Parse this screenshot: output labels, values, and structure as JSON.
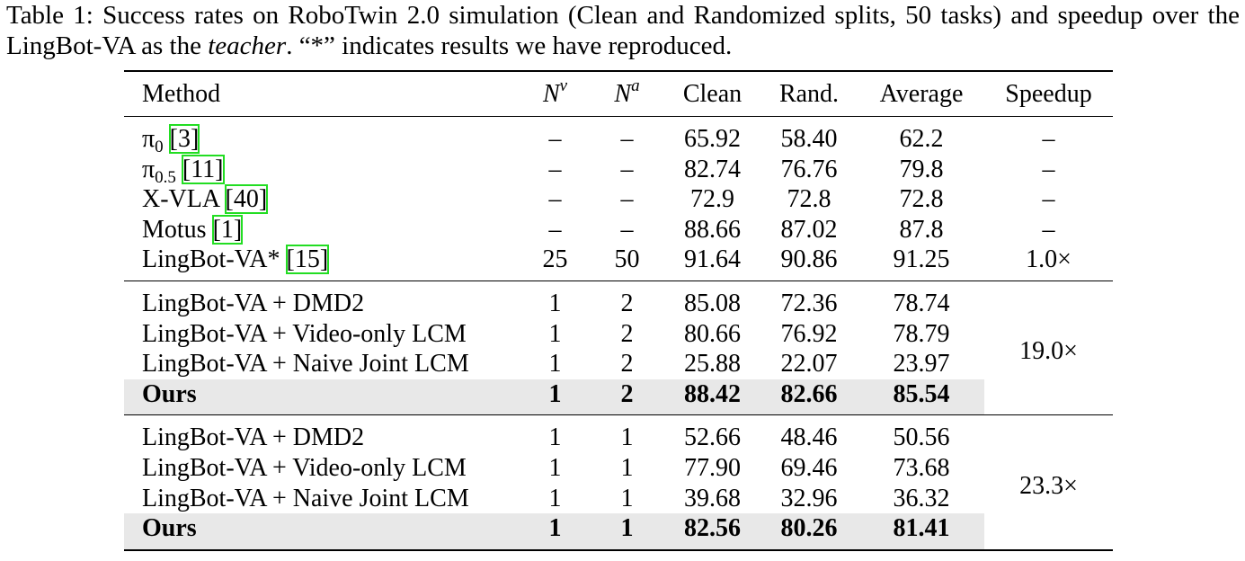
{
  "caption": {
    "before": "Table 1: Success rates on RoboTwin 2.0 simulation (Clean and Randomized splits, 50 tasks) and speedup over the LingBot-VA as the",
    "emph": "teacher",
    "after": ". “*” indicates results we have reproduced."
  },
  "table": {
    "header": [
      {
        "text": "Method"
      },
      {
        "base": "N",
        "sup": "v"
      },
      {
        "base": "N",
        "sup": "a"
      },
      {
        "text": "Clean"
      },
      {
        "text": "Rand."
      },
      {
        "text": "Average"
      },
      {
        "text": "Speedup"
      }
    ],
    "groups": [
      {
        "rows": [
          {
            "method": {
              "name": "π",
              "sub": "0",
              "cite": "[3]"
            },
            "cells": [
              "–",
              "–",
              "65.92",
              "58.40",
              "62.2",
              "–"
            ]
          },
          {
            "method": {
              "name": "π",
              "sub": "0.5",
              "cite": "[11]"
            },
            "cells": [
              "–",
              "–",
              "82.74",
              "76.76",
              "79.8",
              "–"
            ]
          },
          {
            "method": {
              "name": "X-VLA",
              "cite": "[40]"
            },
            "cells": [
              "–",
              "–",
              "72.9",
              "72.8",
              "72.8",
              "–"
            ]
          },
          {
            "method": {
              "name": "Motus",
              "cite": "[1]"
            },
            "cells": [
              "–",
              "–",
              "88.66",
              "87.02",
              "87.8",
              "–"
            ]
          },
          {
            "method": {
              "name": "LingBot-VA*",
              "cite": "[15]"
            },
            "cells": [
              "25",
              "50",
              "91.64",
              "90.86",
              "91.25",
              "1.0×"
            ]
          }
        ]
      },
      {
        "speedup": "19.0×",
        "rows": [
          {
            "method": {
              "name": "LingBot-VA + DMD2"
            },
            "cells": [
              "1",
              "2",
              "85.08",
              "72.36",
              "78.74"
            ]
          },
          {
            "method": {
              "name": "LingBot-VA + Video-only LCM"
            },
            "cells": [
              "1",
              "2",
              "80.66",
              "76.92",
              "78.79"
            ]
          },
          {
            "method": {
              "name": "LingBot-VA + Naive Joint LCM"
            },
            "cells": [
              "1",
              "2",
              "25.88",
              "22.07",
              "23.97"
            ]
          },
          {
            "method": {
              "name": "Ours"
            },
            "cells": [
              "1",
              "2",
              "88.42",
              "82.66",
              "85.54"
            ],
            "highlight": true
          }
        ]
      },
      {
        "speedup": "23.3×",
        "rows": [
          {
            "method": {
              "name": "LingBot-VA + DMD2"
            },
            "cells": [
              "1",
              "1",
              "52.66",
              "48.46",
              "50.56"
            ]
          },
          {
            "method": {
              "name": "LingBot-VA + Video-only LCM"
            },
            "cells": [
              "1",
              "1",
              "77.90",
              "69.46",
              "73.68"
            ]
          },
          {
            "method": {
              "name": "LingBot-VA + Naive Joint LCM"
            },
            "cells": [
              "1",
              "1",
              "39.68",
              "32.96",
              "36.32"
            ]
          },
          {
            "method": {
              "name": "Ours"
            },
            "cells": [
              "1",
              "1",
              "82.56",
              "80.26",
              "81.41"
            ],
            "highlight": true
          }
        ]
      }
    ]
  }
}
